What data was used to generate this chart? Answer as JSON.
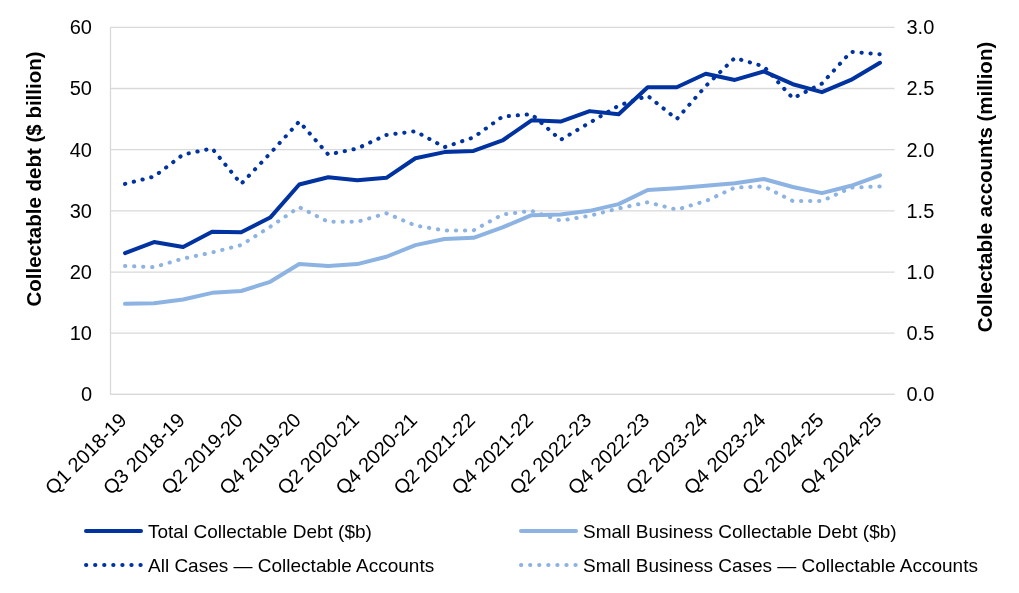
{
  "chart_data": {
    "type": "line",
    "categories": [
      "Q1 2018-19",
      null,
      "Q3 2018-19",
      null,
      "Q2 2019-20",
      null,
      "Q4 2019-20",
      null,
      "Q2 2020-21",
      null,
      "Q4 2020-21",
      null,
      "Q2 2021-22",
      null,
      "Q4 2021-22",
      null,
      "Q2 2022-23",
      null,
      "Q4 2022-23",
      null,
      "Q2 2023-24",
      null,
      "Q4 2023-24",
      null,
      "Q2 2024-25",
      null,
      "Q4 2024-25"
    ],
    "series": [
      {
        "name": "Total Collectable Debt ($b)",
        "color": "#0033a0",
        "values": [
          23.1,
          24.9,
          24.1,
          26.6,
          26.5,
          28.9,
          34.3,
          35.5,
          35.0,
          35.4,
          38.6,
          39.6,
          39.8,
          41.5,
          44.8,
          44.6,
          46.3,
          45.8,
          50.2,
          50.2,
          52.4,
          51.4,
          52.8,
          50.7,
          49.4,
          51.4,
          54.2
        ]
      },
      {
        "name": "Small Business Collectable Debt ($b)",
        "color": "#8db3e2",
        "values": [
          14.8,
          14.9,
          15.5,
          16.6,
          16.9,
          18.4,
          21.3,
          21.0,
          21.3,
          22.5,
          24.4,
          25.4,
          25.6,
          27.3,
          29.3,
          29.4,
          30.0,
          31.1,
          33.4,
          33.7,
          34.1,
          34.5,
          35.2,
          33.9,
          32.9,
          34.1,
          35.8
        ]
      },
      {
        "name": "All Cases — Collectable Accounts",
        "color": "#0033a0",
        "axis": "y2",
        "line_style": "dotted",
        "values": [
          1.72,
          1.78,
          1.96,
          2.01,
          1.72,
          1.97,
          2.23,
          1.96,
          2.01,
          2.12,
          2.15,
          2.02,
          2.1,
          2.27,
          2.29,
          2.08,
          2.22,
          2.36,
          2.44,
          2.25,
          2.52,
          2.75,
          2.68,
          2.42,
          2.54,
          2.8,
          2.78
        ]
      },
      {
        "name": "Small Business Cases — Collectable Accounts",
        "color": "#8db3e2",
        "axis": "y2",
        "line_style": "dotted",
        "values": [
          1.05,
          1.04,
          1.11,
          1.16,
          1.22,
          1.37,
          1.53,
          1.41,
          1.41,
          1.48,
          1.38,
          1.34,
          1.34,
          1.47,
          1.5,
          1.42,
          1.46,
          1.52,
          1.57,
          1.51,
          1.58,
          1.69,
          1.7,
          1.58,
          1.58,
          1.69,
          1.7
        ]
      }
    ],
    "ylabel": "Collectable debt ($ billion)",
    "y2label": "Collectable accounts (million)",
    "ylim": [
      0,
      60
    ],
    "yticks": [
      0,
      10,
      20,
      30,
      40,
      50,
      60
    ],
    "y2lim": [
      0,
      3
    ],
    "y2ticks": [
      {
        "value": 0,
        "label": "0.0"
      },
      {
        "value": 0.5,
        "label": "0.5"
      },
      {
        "value": 1,
        "label": "1.0"
      },
      {
        "value": 1.5,
        "label": "1.5"
      },
      {
        "value": 2,
        "label": "2.0"
      },
      {
        "value": 2.5,
        "label": "2.5"
      },
      {
        "value": 3,
        "label": "3.0"
      }
    ],
    "grid": "y",
    "legend": "bottom"
  }
}
